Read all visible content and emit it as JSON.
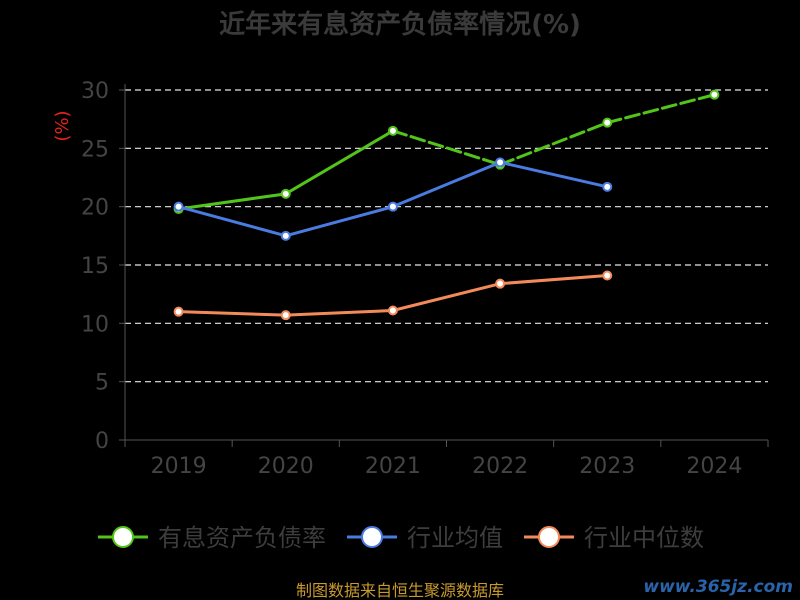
{
  "chart_data": {
    "type": "line",
    "title": "近年来有息资产负债率情况(%)",
    "ylabel": "(%)",
    "xlabel": "",
    "categories": [
      "2019",
      "2020",
      "2021",
      "2022",
      "2023",
      "2024"
    ],
    "yticks": [
      "0",
      "5",
      "10",
      "15",
      "20",
      "25",
      "30"
    ],
    "ylim": [
      0,
      30
    ],
    "grid": true,
    "legend_position": "bottom",
    "series": [
      {
        "name": "有息资产负债率",
        "color": "#52c41a",
        "dashed_segments": [
          false,
          false,
          true,
          true,
          true
        ],
        "values": [
          19.8,
          21.1,
          26.5,
          23.6,
          27.2,
          29.6
        ]
      },
      {
        "name": "行业均值",
        "color": "#4a7be0",
        "dashed_segments": [
          false,
          false,
          false,
          false,
          false
        ],
        "values": [
          20.0,
          17.5,
          20.0,
          23.8,
          21.7,
          null
        ]
      },
      {
        "name": "行业中位数",
        "color": "#f38a5a",
        "dashed_segments": [
          false,
          false,
          false,
          false,
          false
        ],
        "values": [
          11.0,
          10.7,
          11.1,
          13.4,
          14.1,
          null
        ]
      }
    ]
  },
  "footer": {
    "source": "制图数据来自恒生聚源数据库",
    "watermark": "www.365jz.com"
  }
}
